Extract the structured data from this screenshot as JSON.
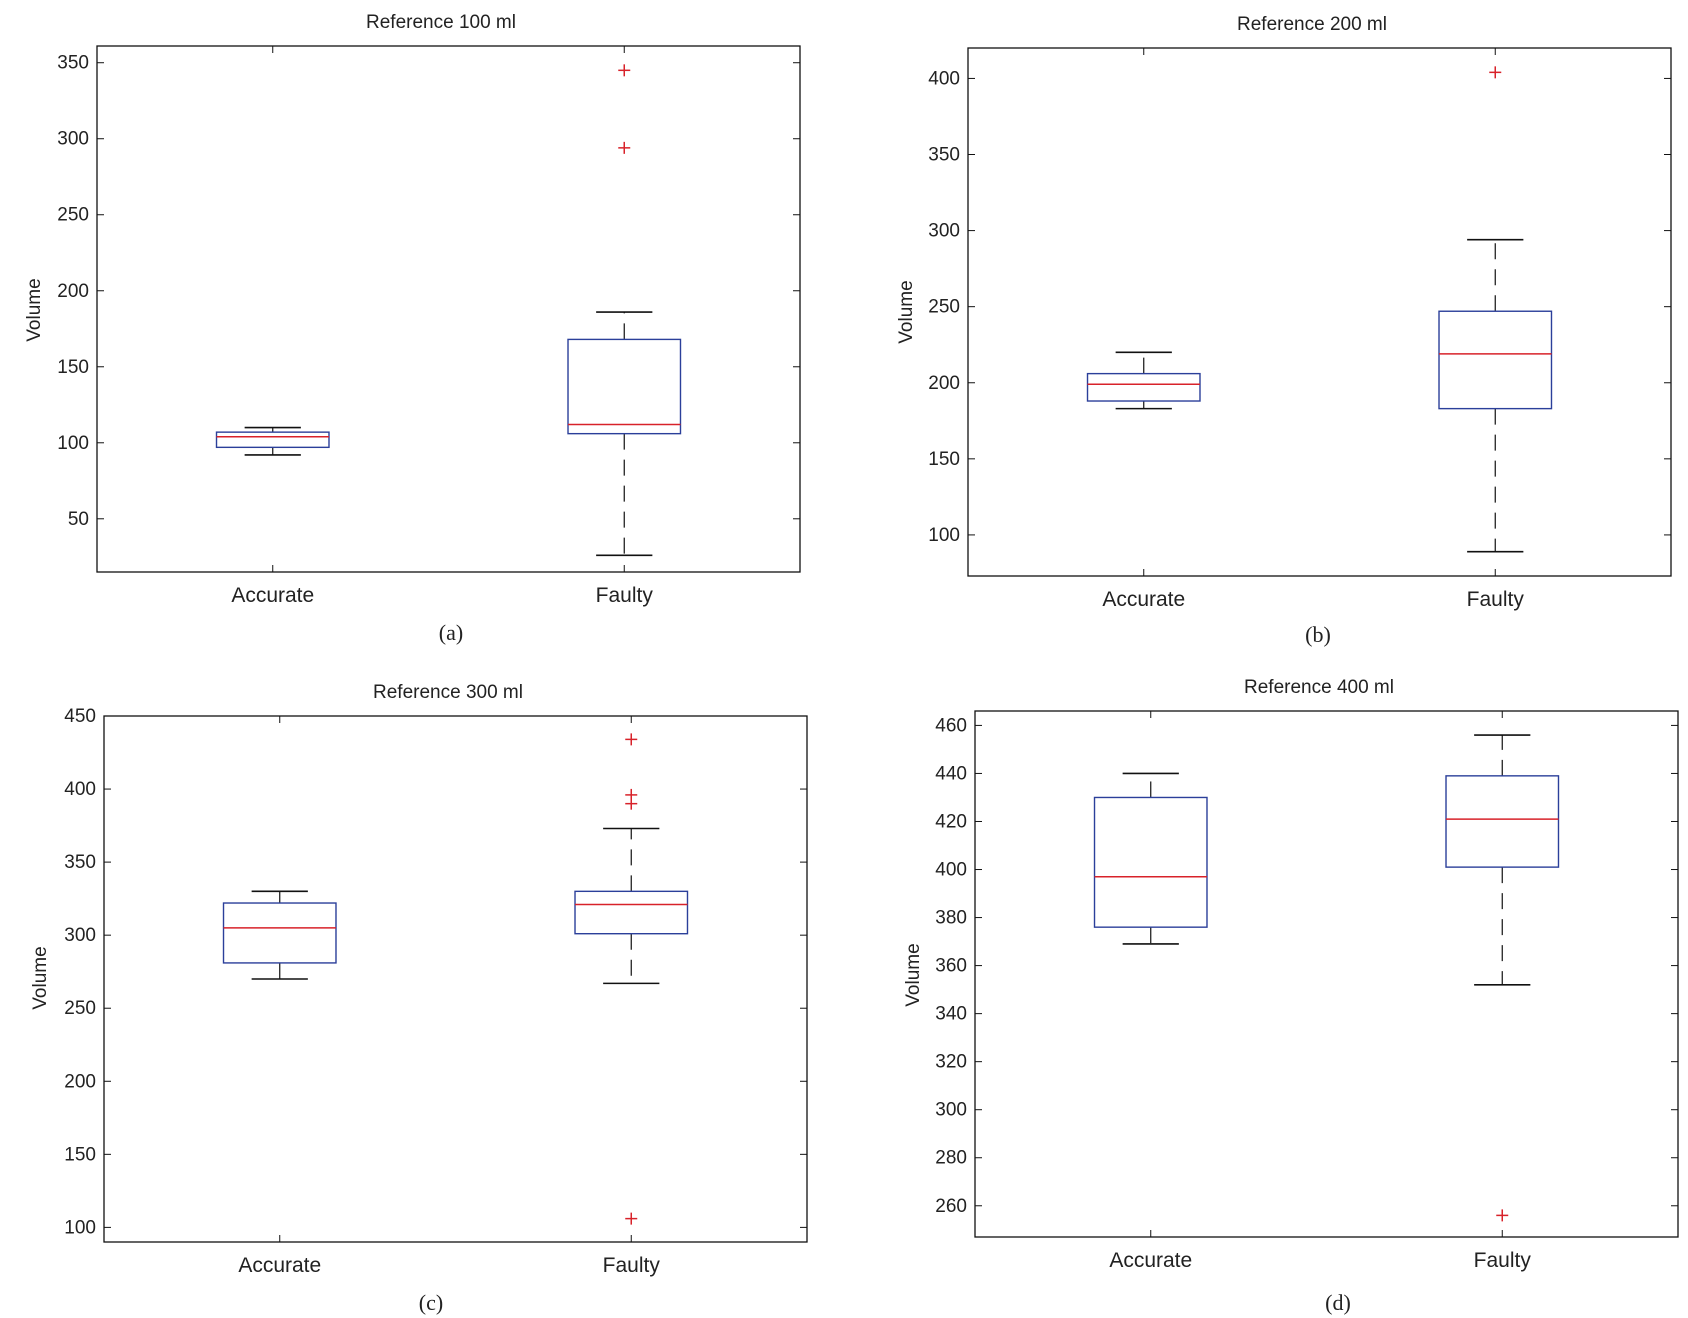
{
  "colors": {
    "box": "#2b3f9a",
    "median": "#d8222a",
    "whisker": "#111111",
    "outlier": "#d8222a",
    "axis": "#111111"
  },
  "chart_data": [
    {
      "type": "boxplot",
      "title": "Reference 100 ml",
      "ylabel": "Volume",
      "caption": "(a)",
      "categories": [
        "Accurate",
        "Faulty"
      ],
      "ylim": [
        15,
        361
      ],
      "yticks": [
        50,
        100,
        150,
        200,
        250,
        300,
        350
      ],
      "boxes": [
        {
          "category": "Accurate",
          "whisker_low": 92,
          "q1": 97,
          "median": 104,
          "q3": 107,
          "whisker_high": 110,
          "outliers": []
        },
        {
          "category": "Faulty",
          "whisker_low": 26,
          "q1": 106,
          "median": 112,
          "q3": 168,
          "whisker_high": 186,
          "outliers": [
            294,
            345
          ]
        }
      ]
    },
    {
      "type": "boxplot",
      "title": "Reference 200 ml",
      "ylabel": "Volume",
      "caption": "(b)",
      "categories": [
        "Accurate",
        "Faulty"
      ],
      "ylim": [
        73,
        420
      ],
      "yticks": [
        100,
        150,
        200,
        250,
        300,
        350,
        400
      ],
      "boxes": [
        {
          "category": "Accurate",
          "whisker_low": 183,
          "q1": 188,
          "median": 199,
          "q3": 206,
          "whisker_high": 220,
          "outliers": []
        },
        {
          "category": "Faulty",
          "whisker_low": 89,
          "q1": 183,
          "median": 219,
          "q3": 247,
          "whisker_high": 294,
          "outliers": [
            404
          ]
        }
      ]
    },
    {
      "type": "boxplot",
      "title": "Reference 300 ml",
      "ylabel": "Volume",
      "caption": "(c)",
      "categories": [
        "Accurate",
        "Faulty"
      ],
      "ylim": [
        90,
        450
      ],
      "yticks": [
        100,
        150,
        200,
        250,
        300,
        350,
        400,
        450
      ],
      "boxes": [
        {
          "category": "Accurate",
          "whisker_low": 270,
          "q1": 281,
          "median": 305,
          "q3": 322,
          "whisker_high": 330,
          "outliers": []
        },
        {
          "category": "Faulty",
          "whisker_low": 267,
          "q1": 301,
          "median": 321,
          "q3": 330,
          "whisker_high": 373,
          "outliers": [
            390,
            396,
            434,
            106
          ]
        }
      ]
    },
    {
      "type": "boxplot",
      "title": "Reference 400 ml",
      "ylabel": "Volume",
      "caption": "(d)",
      "categories": [
        "Accurate",
        "Faulty"
      ],
      "ylim": [
        247,
        466
      ],
      "yticks": [
        260,
        280,
        300,
        320,
        340,
        360,
        380,
        400,
        420,
        440,
        460
      ],
      "boxes": [
        {
          "category": "Accurate",
          "whisker_low": 369,
          "q1": 376,
          "median": 397,
          "q3": 430,
          "whisker_high": 440,
          "outliers": []
        },
        {
          "category": "Faulty",
          "whisker_low": 352,
          "q1": 401,
          "median": 421,
          "q3": 439,
          "whisker_high": 456,
          "outliers": [
            256
          ]
        }
      ]
    }
  ]
}
